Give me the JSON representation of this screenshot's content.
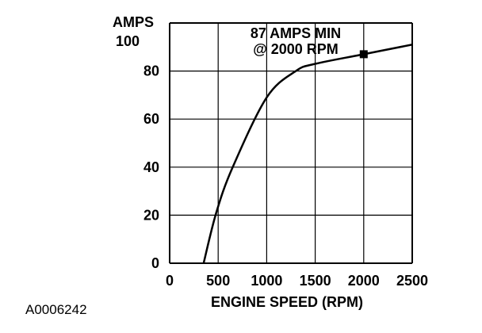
{
  "chart_data": {
    "type": "line",
    "title": "AMPS",
    "xlabel": "ENGINE SPEED (RPM)",
    "ylabel": "AMPS",
    "xlim": [
      0,
      2500
    ],
    "ylim": [
      0,
      100
    ],
    "x_ticks": [
      "0",
      "500",
      "1000",
      "1500",
      "2000",
      "2500"
    ],
    "y_ticks": [
      "0",
      "20",
      "40",
      "60",
      "80",
      "100"
    ],
    "grid": true,
    "series": [
      {
        "points": [
          [
            350,
            0
          ],
          [
            480,
            21
          ],
          [
            650,
            40
          ],
          [
            1000,
            69
          ],
          [
            1300,
            80
          ],
          [
            1500,
            83
          ],
          [
            2000,
            87
          ],
          [
            2500,
            91
          ]
        ]
      }
    ],
    "marker": {
      "x": 2000,
      "y": 87
    },
    "annotation": [
      "87 AMPS MIN",
      "@ 2000 RPM"
    ]
  },
  "figure_id": "A0006242"
}
